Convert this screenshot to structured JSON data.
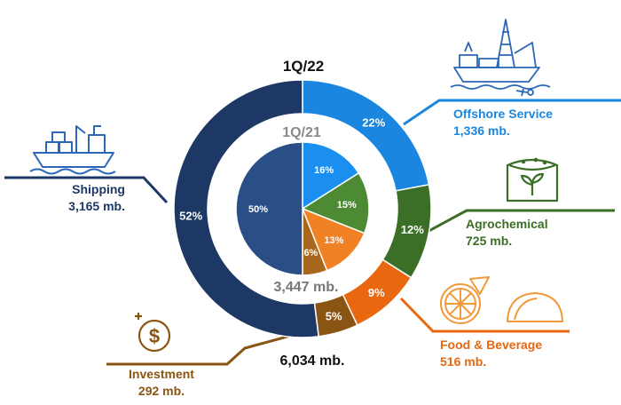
{
  "chart_data": [
    {
      "type": "pie",
      "title": "1Q/22",
      "total_label": "6,034 mb.",
      "categories": [
        "Offshore Service",
        "Agrochemical",
        "Food & Beverage",
        "Investment",
        "Shipping"
      ],
      "values": [
        22,
        12,
        9,
        5,
        52
      ],
      "value_labels": [
        "22%",
        "12%",
        "9%",
        "5%",
        "52%"
      ],
      "amounts": [
        "1,336 mb.",
        "725 mb.",
        "516 mb.",
        "292 mb.",
        "3,165 mb."
      ]
    },
    {
      "type": "pie",
      "title": "1Q/21",
      "total_label": "3,447 mb.",
      "categories": [
        "Offshore Service",
        "Agrochemical",
        "Food & Beverage",
        "Investment",
        "Shipping"
      ],
      "values": [
        16,
        15,
        13,
        6,
        50
      ],
      "value_labels": [
        "16%",
        "15%",
        "13%",
        "6%",
        "50%"
      ]
    }
  ],
  "colors": {
    "Offshore Service": "#1a86e0",
    "Agrochemical": "#3b6e26",
    "Food & Beverage": "#e8670f",
    "Investment": "#8a5412",
    "Shipping": "#1d3864",
    "Shipping_inner": "#2a4f86",
    "Offshore_inner": "#1a8fef",
    "Agro_inner": "#4d8a34",
    "Food_inner": "#f08125",
    "Invest_inner": "#a7681e"
  },
  "segments": {
    "offshore": {
      "name": "Offshore Service",
      "amount": "1,336 mb.",
      "icon": "offshore-rig-icon"
    },
    "agro": {
      "name": "Agrochemical",
      "amount": "725 mb.",
      "icon": "fertilizer-sack-icon"
    },
    "food": {
      "name": "Food & Beverage",
      "amount": "516 mb.",
      "icon": "pizza-taco-icon"
    },
    "investment": {
      "name": "Investment",
      "amount": "292 mb.",
      "icon": "dollar-coin-icon"
    },
    "shipping": {
      "name": "Shipping",
      "amount": "3,165 mb.",
      "icon": "cargo-ship-icon"
    }
  }
}
